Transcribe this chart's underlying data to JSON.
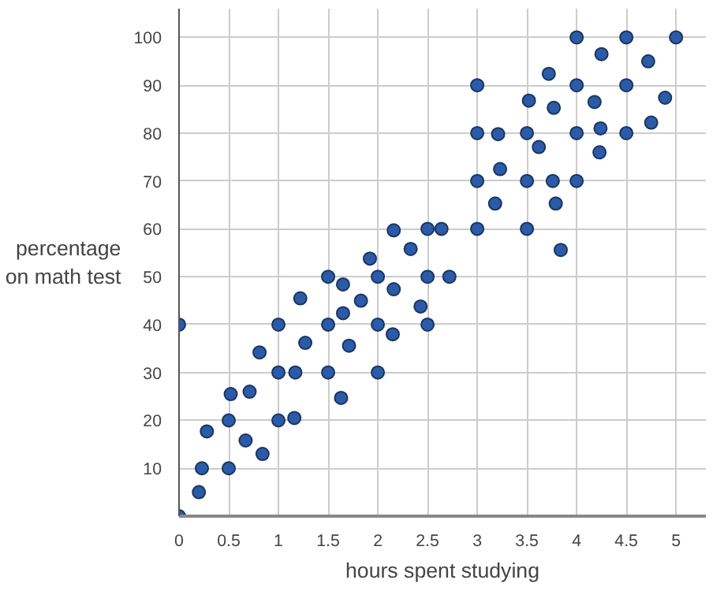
{
  "chart_data": {
    "type": "scatter",
    "xlabel": "hours spent studying",
    "ylabel": "percentage\non math test",
    "xlim": [
      0,
      5.3
    ],
    "ylim": [
      0,
      106
    ],
    "xticks": [
      0,
      0.5,
      1,
      1.5,
      2,
      2.5,
      3,
      3.5,
      4,
      4.5,
      5
    ],
    "yticks": [
      10,
      20,
      30,
      40,
      50,
      60,
      70,
      80,
      90,
      100
    ],
    "grid": true,
    "marker": "circle",
    "series": [
      {
        "color": "#2b5ba8",
        "x": [
          0,
          0,
          0.2,
          0.23,
          0.28,
          0.5,
          0.5,
          0.52,
          0.71,
          0.67,
          0.81,
          0.84,
          1,
          1,
          1,
          1.17,
          1.16,
          1.22,
          1.27,
          1.5,
          1.5,
          1.5,
          1.65,
          1.65,
          1.71,
          1.63,
          1.83,
          2,
          2,
          2,
          2.16,
          2.15,
          2.43,
          2.5,
          2.5,
          1.92,
          2.16,
          2.33,
          2.5,
          2.64,
          2.72,
          4,
          4.5,
          5,
          4.25,
          4.72,
          3.72,
          3,
          4,
          4.5,
          3.52,
          3.77,
          4.18,
          4.89,
          3,
          3.21,
          3.5,
          3.62,
          4,
          4.24,
          4.5,
          4.75,
          4.23,
          3.23,
          3,
          3.5,
          3.76,
          4,
          3.18,
          3.79,
          3,
          3.5,
          3.84
        ],
        "values": [
          40,
          0,
          5,
          10,
          17.7,
          20,
          10,
          25.5,
          26,
          15.8,
          34.2,
          13,
          40,
          30,
          20,
          30,
          20.5,
          45.5,
          36.2,
          50,
          40,
          30,
          48.4,
          42.4,
          35.6,
          24.7,
          45,
          50,
          40,
          30,
          47.4,
          38,
          43.8,
          50,
          40,
          53.8,
          59.7,
          55.8,
          60,
          60,
          50,
          100,
          100,
          100,
          96.5,
          95,
          92.4,
          90,
          90,
          90,
          86.8,
          85.3,
          86.5,
          87.4,
          80,
          79.8,
          80,
          77.1,
          80,
          81,
          80,
          82.2,
          76,
          72.5,
          70,
          70,
          70,
          70,
          65.3,
          65.3,
          60,
          60,
          55.6
        ]
      }
    ]
  }
}
